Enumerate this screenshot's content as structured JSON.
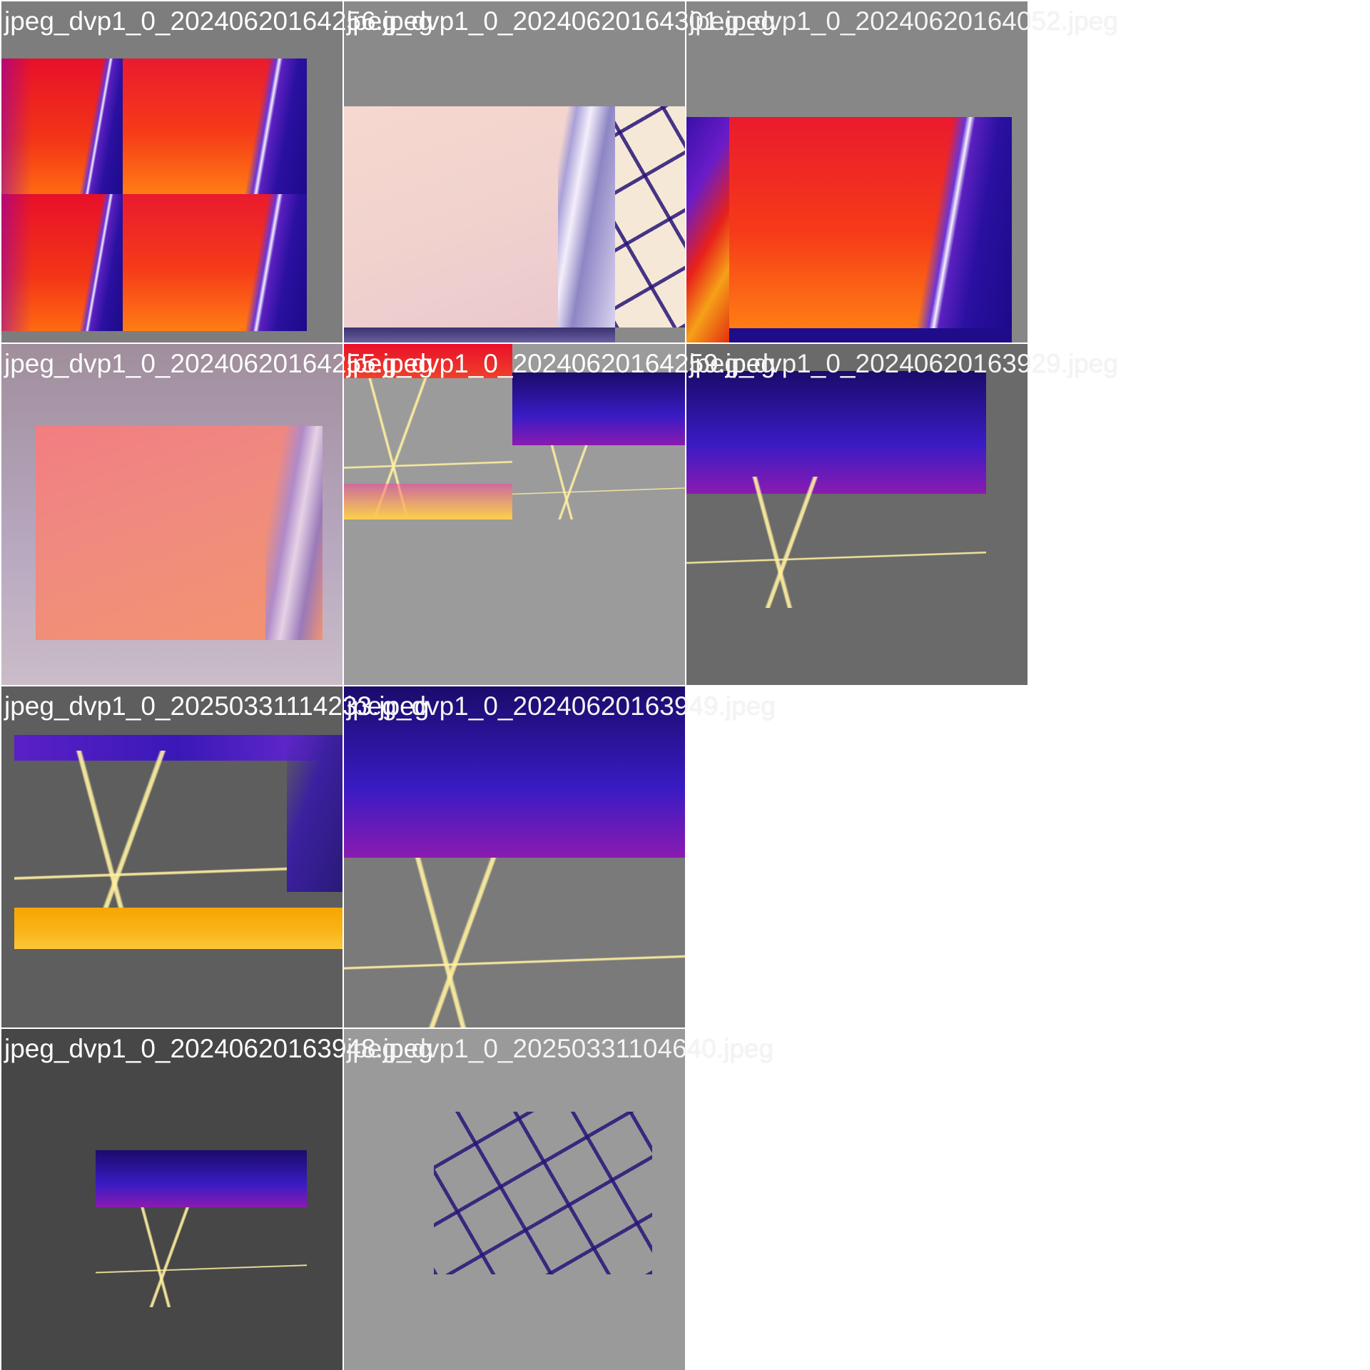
{
  "mosaic": {
    "tiles": [
      {
        "filename": "jpeg_dvp1_0_20240620164256.jpeg",
        "background": "#7d7d7d"
      },
      {
        "filename": "jpeg_dvp1_0_20240620164301.jpeg",
        "background": "#8a8a8a"
      },
      {
        "filename": "jpeg_dvp1_0_20240620164052.jpeg",
        "background": "#878787"
      },
      {
        "filename": "jpeg_dvp1_0_20240620164255.jpeg",
        "background": "#9a8f9a"
      },
      {
        "filename": "jpeg_dvp1_0_20240620164259.jpeg",
        "background": "#9b9b9b"
      },
      {
        "filename": "jpeg_dvp1_0_20240620163929.jpeg",
        "background": "#6a6a6a"
      },
      {
        "filename": "jpeg_dvp1_0_20250331114233.jpeg",
        "background": "#5e5e5e"
      },
      {
        "filename": "jpeg_dvp1_0_20240620163949.jpeg",
        "background": "#7a7a7a"
      },
      {
        "filename": "jpeg_dvp1_0_20240620163948.jpeg",
        "background": "#474747"
      },
      {
        "filename": "jpeg_dvp1_0_20250331104640.jpeg",
        "background": "#9a9a9a"
      }
    ]
  }
}
